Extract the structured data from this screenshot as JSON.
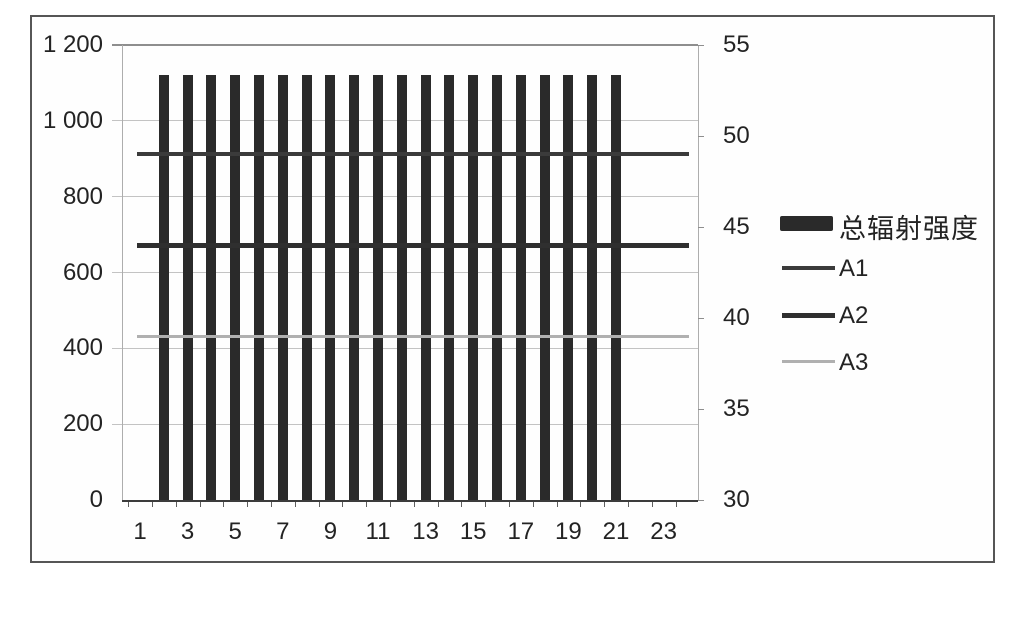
{
  "figure": {
    "background": "#ffffff",
    "frame_border_color": "#565656"
  },
  "chart_data": {
    "type": "bar",
    "subtype": "bar-line-combo",
    "title": "",
    "xlabel": "",
    "ylabel_left": "",
    "ylabel_right": "",
    "grid": "horizontal-only",
    "categories": [
      1,
      2,
      3,
      4,
      5,
      6,
      7,
      8,
      9,
      10,
      11,
      12,
      13,
      14,
      15,
      16,
      17,
      18,
      19,
      20,
      21,
      22,
      23,
      24
    ],
    "x_axis": {
      "tick_labels": [
        "1",
        "3",
        "5",
        "7",
        "9",
        "11",
        "13",
        "15",
        "17",
        "19",
        "21",
        "23"
      ],
      "tick_label_values": [
        1,
        3,
        5,
        7,
        9,
        11,
        13,
        15,
        17,
        19,
        21,
        23
      ]
    },
    "left_axis": {
      "lim": [
        0,
        1200
      ],
      "tick_values": [
        0,
        200,
        400,
        600,
        800,
        1000,
        1200
      ],
      "tick_labels": [
        "0",
        "200",
        "400",
        "600",
        "800",
        "1 000",
        "1 200"
      ]
    },
    "right_axis": {
      "lim": [
        30,
        55
      ],
      "tick_values": [
        30,
        35,
        40,
        45,
        50,
        55
      ],
      "tick_labels": [
        "30",
        "35",
        "40",
        "45",
        "50",
        "55"
      ]
    },
    "series": [
      {
        "name": "总辐射强度",
        "type": "bar",
        "axis": "left",
        "color": "#2a2a2a",
        "values": [
          null,
          1120,
          1120,
          1120,
          1120,
          1120,
          1120,
          1120,
          1120,
          1120,
          1120,
          1120,
          1120,
          1120,
          1120,
          1120,
          1120,
          1120,
          1120,
          1120,
          1120,
          null,
          null,
          null
        ]
      },
      {
        "name": "A1",
        "type": "line",
        "axis": "right",
        "color": "#3b3b3b",
        "thickness": 4,
        "constant_value": 49
      },
      {
        "name": "A2",
        "type": "line",
        "axis": "right",
        "color": "#2f2f2f",
        "thickness": 5,
        "constant_value": 44
      },
      {
        "name": "A3",
        "type": "line",
        "axis": "right",
        "color": "#b0b0b0",
        "thickness": 3,
        "constant_value": 39
      }
    ],
    "legend": {
      "position": "right",
      "entries": [
        "总辐射强度",
        "A1",
        "A2",
        "A3"
      ]
    }
  }
}
